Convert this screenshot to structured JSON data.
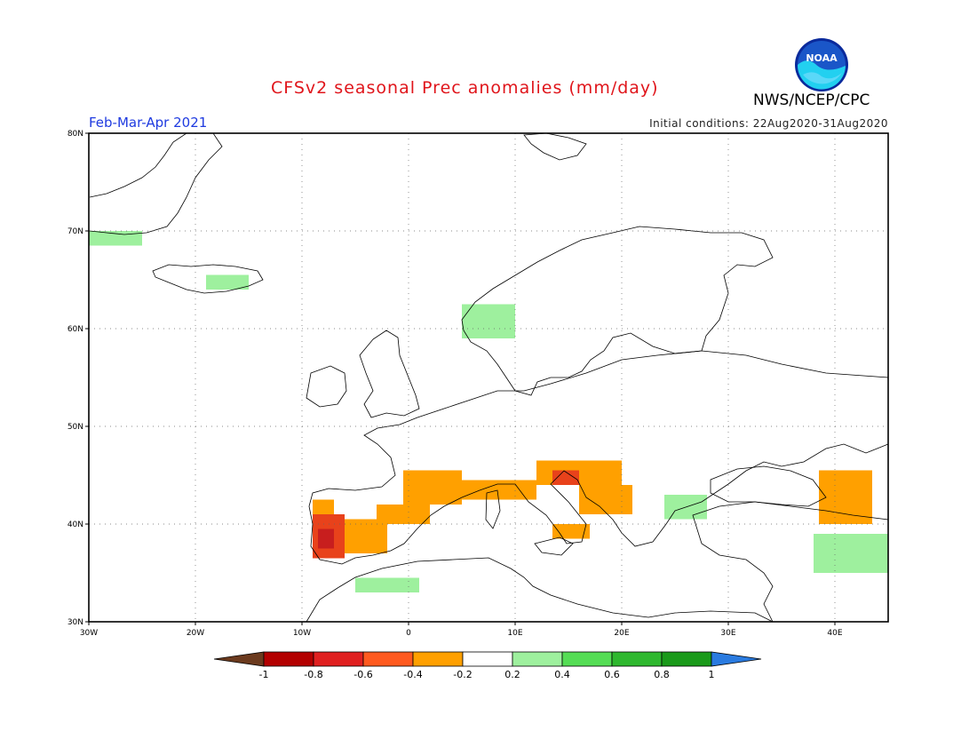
{
  "title": "CFSv2 seasonal Prec anomalies (mm/day)",
  "agency": "NWS/NCEP/CPC",
  "logo_text": "NOAA",
  "season": "Feb-Mar-Apr 2021",
  "initial_conditions": "Initial conditions: 22Aug2020-31Aug2020",
  "map": {
    "lon_range": [
      -30,
      45
    ],
    "lat_range": [
      30,
      80
    ],
    "lon_ticks": [
      "30W",
      "20W",
      "10W",
      "0",
      "10E",
      "20E",
      "30E",
      "40E"
    ],
    "lat_ticks": [
      "30N",
      "40N",
      "50N",
      "60N",
      "70N",
      "80N"
    ],
    "grid": true,
    "grid_style": "dotted"
  },
  "colorbar": {
    "labels": [
      "-1",
      "-0.8",
      "-0.6",
      "-0.4",
      "-0.2",
      "0.2",
      "0.4",
      "0.6",
      "0.8",
      "1"
    ],
    "colors": [
      "#6b3a1e",
      "#b30000",
      "#e02020",
      "#ff5a1f",
      "#ffa000",
      "#ffffff",
      "#9ef09e",
      "#55dd55",
      "#2fb82f",
      "#1a9a1a",
      "#2a7be0"
    ]
  },
  "colors": {
    "dry_strong": "#c81e1e",
    "dry_mid": "#e8421b",
    "dry_light": "#ffa000",
    "wet_light": "#9ef09e",
    "wet_mid": "#55dd55",
    "title_red": "#e0151b",
    "season_blue": "#1f3be0"
  },
  "anomaly_regions": [
    {
      "name": "Iberia west",
      "class": "dry_mid",
      "lon": [
        -9,
        -6
      ],
      "lat": [
        36.5,
        41
      ]
    },
    {
      "name": "Portugal core",
      "class": "dry_strong",
      "lon": [
        -8.5,
        -7
      ],
      "lat": [
        37.5,
        39.5
      ]
    },
    {
      "name": "Iberia centre",
      "class": "dry_light",
      "lon": [
        -6,
        -2
      ],
      "lat": [
        37,
        40.5
      ]
    },
    {
      "name": "Iberia north coast",
      "class": "dry_light",
      "lon": [
        -9,
        -7
      ],
      "lat": [
        41,
        42.5
      ]
    },
    {
      "name": "Southern France",
      "class": "dry_light",
      "lon": [
        -0.5,
        5
      ],
      "lat": [
        42,
        45.5
      ]
    },
    {
      "name": "Catalonia",
      "class": "dry_light",
      "lon": [
        -3,
        2
      ],
      "lat": [
        40,
        42
      ]
    },
    {
      "name": "Gulf of Lion",
      "class": "dry_light",
      "lon": [
        5,
        12
      ],
      "lat": [
        42.5,
        44.5
      ]
    },
    {
      "name": "Alps / N Italy",
      "class": "dry_light",
      "lon": [
        12,
        20
      ],
      "lat": [
        44,
        46.5
      ]
    },
    {
      "name": "Adriatic",
      "class": "dry_mid",
      "lon": [
        13.5,
        16
      ],
      "lat": [
        44,
        45.5
      ]
    },
    {
      "name": "Balkans",
      "class": "dry_light",
      "lon": [
        16,
        21
      ],
      "lat": [
        41,
        44
      ]
    },
    {
      "name": "Southern Italy",
      "class": "dry_light",
      "lon": [
        13.5,
        17
      ],
      "lat": [
        38.5,
        40
      ]
    },
    {
      "name": "Caucasus",
      "class": "dry_light",
      "lon": [
        38.5,
        43.5
      ],
      "lat": [
        40,
        45.5
      ]
    },
    {
      "name": "Iceland",
      "class": "wet_light",
      "lon": [
        -19,
        -15
      ],
      "lat": [
        64,
        65.5
      ]
    },
    {
      "name": "Greenland coast",
      "class": "wet_light",
      "lon": [
        -30,
        -25
      ],
      "lat": [
        68.5,
        70
      ]
    },
    {
      "name": "Western Norway",
      "class": "wet_light",
      "lon": [
        5,
        10
      ],
      "lat": [
        59,
        62.5
      ]
    },
    {
      "name": "Bulgaria",
      "class": "wet_light",
      "lon": [
        24,
        28
      ],
      "lat": [
        40.5,
        43
      ]
    },
    {
      "name": "Eastern Turkey",
      "class": "wet_light",
      "lon": [
        38,
        45
      ],
      "lat": [
        35,
        39
      ]
    },
    {
      "name": "North Africa",
      "class": "wet_light",
      "lon": [
        -5,
        1
      ],
      "lat": [
        33,
        34.5
      ]
    }
  ]
}
